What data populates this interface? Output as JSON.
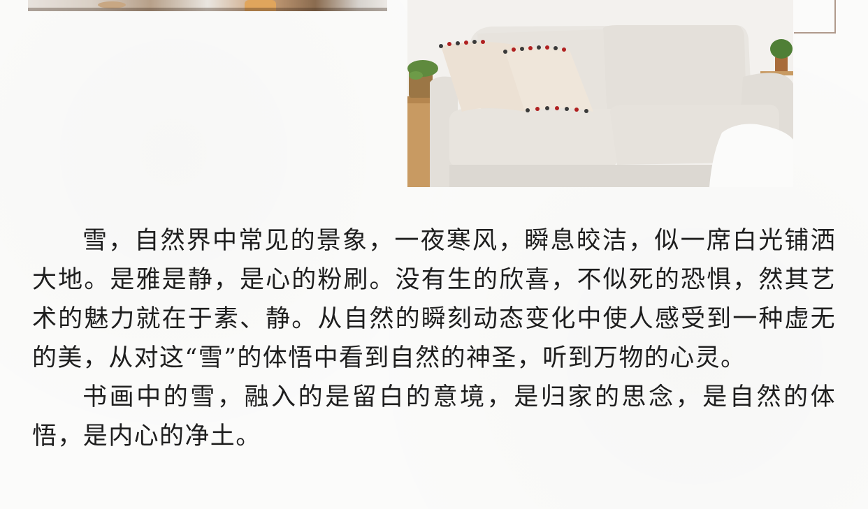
{
  "article": {
    "paragraphs": [
      "雪，自然界中常见的景象，一夜寒风，瞬息皎洁，似一席白光铺洒大地。是雅是静，是心的粉刷。没有生的欣喜，不似死的恐惧，然其艺术的魅力就在于素、静。从自然的瞬刻动态变化中使人感受到一种虚无的美，从对这“雪”的体悟中看到自然的神圣，听到万物的心灵。",
      "书画中的雪，融入的是留白的意境，是归家的思念，是自然的体悟，是内心的净土。"
    ]
  },
  "colors": {
    "background": "#fbfbfa",
    "text": "#1e1e1e",
    "frame_line": "#b09a8c",
    "sofa": "#e6e2dc"
  }
}
